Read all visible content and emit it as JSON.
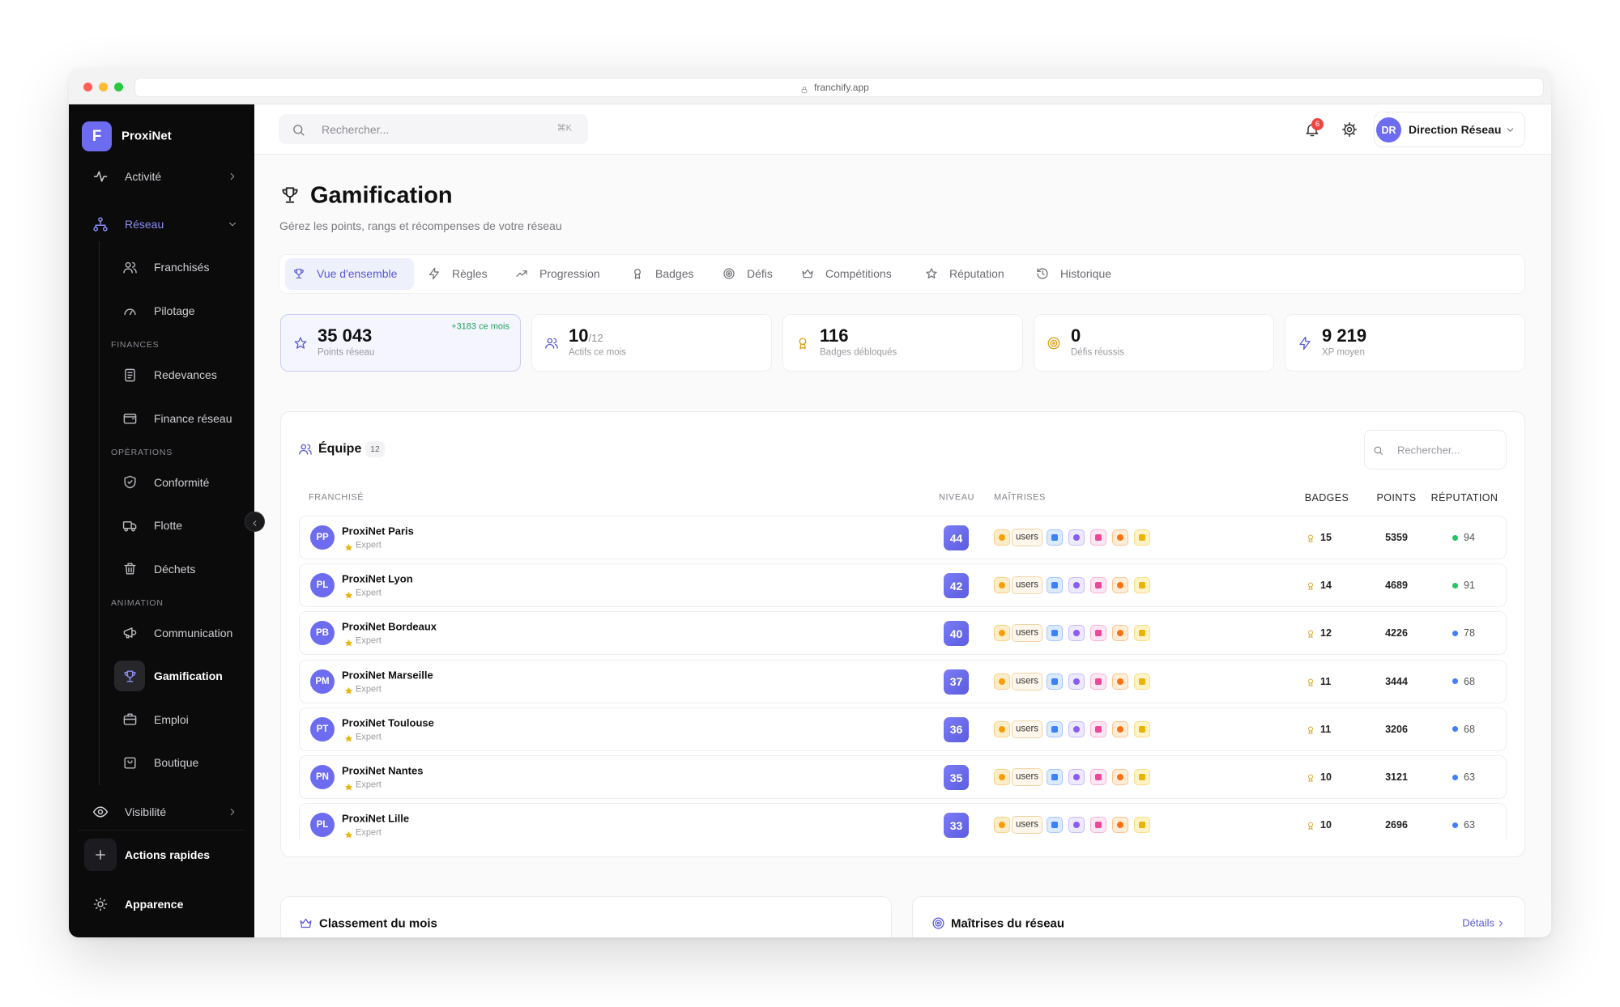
{
  "browser": {
    "url": "franchify.app"
  },
  "sidebar": {
    "logo": "F",
    "brand": "ProxiNet",
    "primary": [
      "Activité",
      "Réseau"
    ],
    "reseau_items": [
      "Franchisés",
      "Pilotage"
    ],
    "groups": [
      {
        "title": "FINANCES",
        "items": [
          "Redevances",
          "Finance réseau"
        ]
      },
      {
        "title": "OPÉRATIONS",
        "items": [
          "Conformité",
          "Flotte",
          "Déchets"
        ]
      },
      {
        "title": "ANIMATION",
        "items": [
          "Communication",
          "Gamification",
          "Emploi",
          "Boutique"
        ]
      }
    ],
    "secondary": "Visibilité",
    "quick_action": "Actions rapides",
    "appearance": "Apparence"
  },
  "topbar": {
    "search_placeholder": "Rechercher...",
    "shortcut": "⌘K",
    "notifications": "6",
    "avatar": "DR",
    "user": "Direction Réseau"
  },
  "page": {
    "title": "Gamification",
    "subtitle": "Gérez les points, rangs et récompenses de votre réseau"
  },
  "tabs": [
    "Vue d'ensemble",
    "Règles",
    "Progression",
    "Badges",
    "Défis",
    "Compétitions",
    "Réputation",
    "Historique"
  ],
  "stats": [
    {
      "value": "35 043",
      "label": "Points réseau",
      "delta": "+3183 ce mois"
    },
    {
      "value": "10",
      "total": "/12",
      "label": "Actifs ce mois"
    },
    {
      "value": "116",
      "label": "Badges débloqués"
    },
    {
      "value": "0",
      "label": "Défis réussis"
    },
    {
      "value": "9 219",
      "label": "XP moyen"
    }
  ],
  "team": {
    "title": "Équipe",
    "count": "12",
    "search_placeholder": "Rechercher...",
    "columns": [
      "FRANCHISÉ",
      "NIVEAU",
      "MAÎTRISES",
      "BADGES",
      "POINTS",
      "RÉPUTATION"
    ],
    "mastery_label": "users",
    "rows": [
      {
        "initials": "PP",
        "name": "ProxiNet Paris",
        "rank": "Expert",
        "level": 44,
        "badges": 15,
        "points": 5359,
        "reputation": 94,
        "reputation_color": "#22c55e"
      },
      {
        "initials": "PL",
        "name": "ProxiNet Lyon",
        "rank": "Expert",
        "level": 42,
        "badges": 14,
        "points": 4689,
        "reputation": 91,
        "reputation_color": "#22c55e"
      },
      {
        "initials": "PB",
        "name": "ProxiNet Bordeaux",
        "rank": "Expert",
        "level": 40,
        "badges": 12,
        "points": 4226,
        "reputation": 78,
        "reputation_color": "#3b82f6"
      },
      {
        "initials": "PM",
        "name": "ProxiNet Marseille",
        "rank": "Expert",
        "level": 37,
        "badges": 11,
        "points": 3444,
        "reputation": 68,
        "reputation_color": "#3b82f6"
      },
      {
        "initials": "PT",
        "name": "ProxiNet Toulouse",
        "rank": "Expert",
        "level": 36,
        "badges": 11,
        "points": 3206,
        "reputation": 68,
        "reputation_color": "#3b82f6"
      },
      {
        "initials": "PN",
        "name": "ProxiNet Nantes",
        "rank": "Expert",
        "level": 35,
        "badges": 10,
        "points": 3121,
        "reputation": 63,
        "reputation_color": "#3b82f6"
      },
      {
        "initials": "PL",
        "name": "ProxiNet Lille",
        "rank": "Expert",
        "level": 33,
        "badges": 10,
        "points": 2696,
        "reputation": 63,
        "reputation_color": "#3b82f6"
      }
    ]
  },
  "cards": {
    "ranking": "Classement du mois",
    "masteries": "Maîtrises du réseau",
    "details": "Détails"
  }
}
